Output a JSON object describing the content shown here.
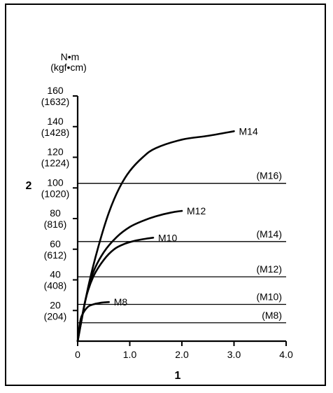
{
  "chart_data": {
    "type": "line",
    "title": "",
    "xlabel": "1",
    "ylabel": "2",
    "y_unit_line1": "N•m",
    "y_unit_line2": "(kgf•cm)",
    "xlim": [
      0,
      4.0
    ],
    "ylim": [
      0,
      160
    ],
    "x_ticks": [
      {
        "value": 0,
        "label": "0"
      },
      {
        "value": 1.0,
        "label": "1.0"
      },
      {
        "value": 2.0,
        "label": "2.0"
      },
      {
        "value": 3.0,
        "label": "3.0"
      },
      {
        "value": 4.0,
        "label": "4.0"
      }
    ],
    "y_ticks": [
      {
        "value": 20,
        "label": "20",
        "sublabel": "(204)"
      },
      {
        "value": 40,
        "label": "40",
        "sublabel": "(408)"
      },
      {
        "value": 60,
        "label": "60",
        "sublabel": "(612)"
      },
      {
        "value": 80,
        "label": "80",
        "sublabel": "(816)"
      },
      {
        "value": 100,
        "label": "100",
        "sublabel": "(1020)"
      },
      {
        "value": 120,
        "label": "120",
        "sublabel": "(1224)"
      },
      {
        "value": 140,
        "label": "140",
        "sublabel": "(1428)"
      },
      {
        "value": 160,
        "label": "160",
        "sublabel": "(1632)"
      }
    ],
    "grid": false,
    "series": [
      {
        "name": "M8",
        "x": [
          0,
          0.05,
          0.1,
          0.2,
          0.3,
          0.4,
          0.5,
          0.6
        ],
        "y": [
          0,
          13,
          18,
          22.5,
          24,
          24.8,
          25.3,
          25.5
        ]
      },
      {
        "name": "M10",
        "x": [
          0,
          0.15,
          0.3,
          0.5,
          0.7,
          0.9,
          1.1,
          1.3,
          1.45
        ],
        "y": [
          0,
          27,
          42,
          53,
          60,
          63.5,
          65.5,
          66.8,
          67.5
        ]
      },
      {
        "name": "M12",
        "x": [
          0,
          0.15,
          0.3,
          0.5,
          0.75,
          1.0,
          1.25,
          1.5,
          1.8,
          2.0
        ],
        "y": [
          0,
          27,
          45,
          58,
          68,
          74.5,
          78.5,
          81.5,
          84,
          85
        ]
      },
      {
        "name": "M14",
        "x": [
          0,
          0.2,
          0.4,
          0.6,
          0.8,
          1.0,
          1.25,
          1.5,
          2.0,
          2.5,
          3.0
        ],
        "y": [
          0,
          35,
          62,
          84,
          100,
          111,
          120,
          126,
          131.5,
          134,
          137
        ]
      }
    ],
    "reference_lines": [
      {
        "label": "(M16)",
        "y": 103
      },
      {
        "label": "(M14)",
        "y": 65
      },
      {
        "label": "(M12)",
        "y": 42
      },
      {
        "label": "(M10)",
        "y": 24
      },
      {
        "label": "(M8)",
        "y": 12
      }
    ]
  }
}
